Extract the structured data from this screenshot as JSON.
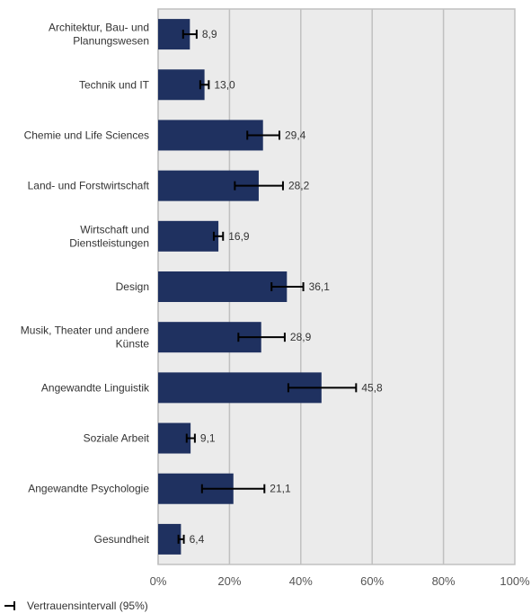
{
  "chart_data": {
    "type": "bar",
    "orientation": "horizontal",
    "categories": [
      "Architektur, Bau- und Planungswesen",
      "Technik und IT",
      "Chemie und Life Sciences",
      "Land- und Forstwirtschaft",
      "Wirtschaft und Dienstleistungen",
      "Design",
      "Musik, Theater und andere Künste",
      "Angewandte Linguistik",
      "Soziale Arbeit",
      "Angewandte Psychologie",
      "Gesundheit"
    ],
    "category_lines": [
      [
        "Architektur, Bau- und",
        "Planungswesen"
      ],
      [
        "Technik und IT"
      ],
      [
        "Chemie und Life Sciences"
      ],
      [
        "Land- und Forstwirtschaft"
      ],
      [
        "Wirtschaft und",
        "Dienstleistungen"
      ],
      [
        "Design"
      ],
      [
        "Musik, Theater und andere",
        "Künste"
      ],
      [
        "Angewandte Linguistik"
      ],
      [
        "Soziale Arbeit"
      ],
      [
        "Angewandte Psychologie"
      ],
      [
        "Gesundheit"
      ]
    ],
    "values": [
      8.9,
      13.0,
      29.4,
      28.2,
      16.9,
      36.1,
      28.9,
      45.8,
      9.1,
      21.1,
      6.4
    ],
    "value_labels": [
      "8,9",
      "13,0",
      "29,4",
      "28,2",
      "16,9",
      "36,1",
      "28,9",
      "45,8",
      "9,1",
      "21,1",
      "6,4"
    ],
    "ci_low": [
      7.0,
      11.8,
      25.0,
      21.5,
      15.6,
      31.8,
      22.5,
      36.5,
      8.0,
      12.3,
      5.7
    ],
    "ci_high": [
      10.8,
      14.2,
      34.0,
      35.0,
      18.2,
      40.7,
      35.5,
      55.5,
      10.3,
      29.8,
      7.2
    ],
    "xlim": [
      0,
      100
    ],
    "xticks": [
      "0%",
      "20%",
      "40%",
      "60%",
      "80%",
      "100%"
    ],
    "grid": true,
    "legend": {
      "label": "Vertrauensintervall (95%)",
      "placement": "bottom-left"
    },
    "colors": {
      "bar": "#1f3160",
      "plot_bg": "#ebebeb",
      "grid": "#c0c0c0",
      "errorbar": "#000000"
    }
  }
}
